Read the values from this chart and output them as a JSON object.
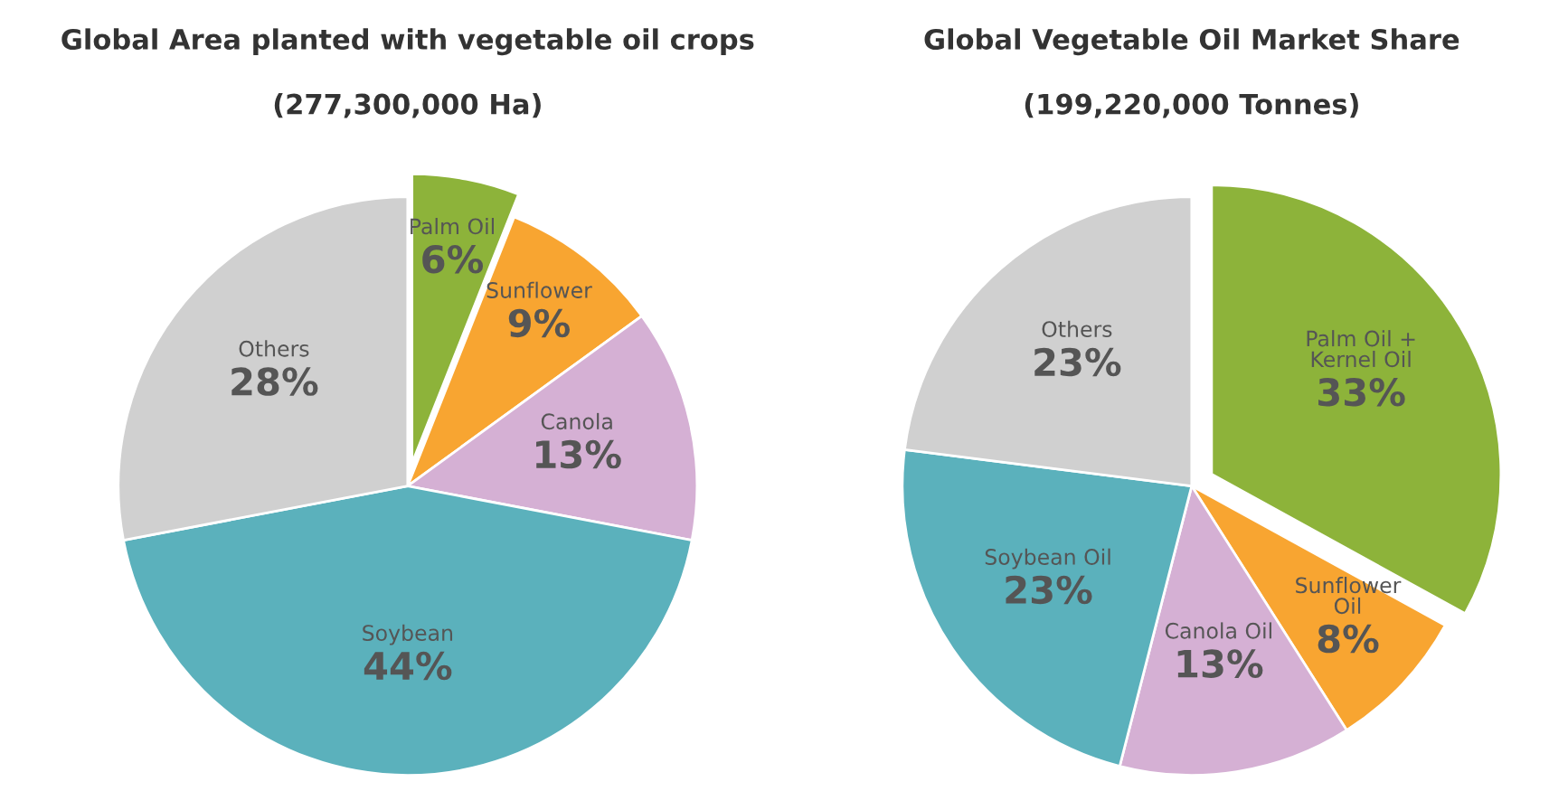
{
  "chart_data": [
    {
      "type": "pie",
      "title": "Global Area planted with vegetable oil crops",
      "subtitle": "(277,300,000 Ha)",
      "categories": [
        "Palm Oil",
        "Sunflower",
        "Canola",
        "Soybean",
        "Others"
      ],
      "values": [
        6,
        9,
        13,
        44,
        28
      ],
      "colors": [
        "#8db33a",
        "#f8a531",
        "#d5b0d4",
        "#5bb1bc",
        "#d0d0d0"
      ],
      "value_labels": [
        "6%",
        "9%",
        "13%",
        "44%",
        "28%"
      ]
    },
    {
      "type": "pie",
      "title": "Global Vegetable Oil Market Share",
      "subtitle": "(199,220,000 Tonnes)",
      "categories": [
        "Palm Oil +\nKernel Oil",
        "Sunflower\nOil",
        "Canola Oil",
        "Soybean Oil",
        "Others"
      ],
      "values": [
        33,
        8,
        13,
        23,
        23
      ],
      "colors": [
        "#8db33a",
        "#f8a531",
        "#d5b0d4",
        "#5bb1bc",
        "#d0d0d0"
      ],
      "value_labels": [
        "33%",
        "8%",
        "13%",
        "23%",
        "23%"
      ]
    }
  ]
}
